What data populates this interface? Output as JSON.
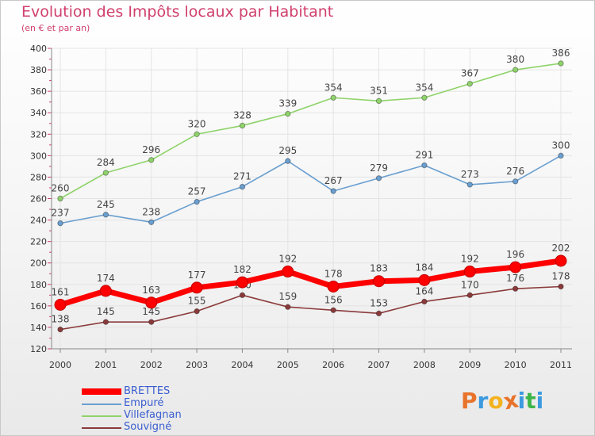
{
  "header": {
    "title": "Evolution des Impôts locaux par Habitant",
    "subtitle": "(en € et par an)"
  },
  "logo": {
    "letters": [
      "P",
      "r",
      "o",
      "x",
      "i",
      "t",
      "i"
    ],
    "colors": [
      "#e8732a",
      "#3b9ae0",
      "#f3b21f",
      "#e8732a",
      "#3b9ae0",
      "#3db54a",
      "#3b9ae0"
    ]
  },
  "chart_data": {
    "type": "line",
    "title": "Evolution des Impôts locaux par Habitant",
    "subtitle": "(en € et par an)",
    "x": [
      "2000",
      "2001",
      "2002",
      "2003",
      "2004",
      "2005",
      "2006",
      "2007",
      "2008",
      "2009",
      "2010",
      "2011"
    ],
    "yticks": [
      "120",
      "140",
      "160",
      "180",
      "200",
      "220",
      "240",
      "260",
      "280",
      "300",
      "320",
      "340",
      "360",
      "380",
      "400"
    ],
    "ylim": [
      120,
      400
    ],
    "grid": true,
    "legend_position": "bottom-left",
    "series": [
      {
        "name": "BRETTES",
        "color": "#ff0000",
        "values": [
          161,
          174,
          163,
          177,
          182,
          192,
          178,
          183,
          184,
          192,
          196,
          202
        ],
        "labels": [
          "161",
          "174",
          "163",
          "177",
          "182",
          "192",
          "178",
          "183",
          "184",
          "192",
          "196",
          "202"
        ]
      },
      {
        "name": "Empuré",
        "color": "#6a9fd0",
        "values": [
          237,
          245,
          238,
          257,
          271,
          295,
          267,
          279,
          291,
          273,
          276,
          300
        ],
        "labels": [
          "237",
          "245",
          "238",
          "257",
          "271",
          "295",
          "267",
          "279",
          "291",
          "273",
          "276",
          "300"
        ]
      },
      {
        "name": "Villefagnan",
        "color": "#8fd36a",
        "values": [
          260,
          284,
          296,
          320,
          328,
          339,
          354,
          351,
          354,
          367,
          380,
          386
        ],
        "labels": [
          "260",
          "284",
          "296",
          "320",
          "328",
          "339",
          "354",
          "351",
          "354",
          "367",
          "380",
          "386"
        ]
      },
      {
        "name": "Souvigné",
        "color": "#8b3a3a",
        "values": [
          138,
          145,
          145,
          155,
          170,
          159,
          156,
          153,
          164,
          170,
          176,
          178
        ],
        "labels": [
          "138",
          "145",
          "145",
          "155",
          "170",
          "159",
          "156",
          "153",
          "164",
          "170",
          "176",
          "178"
        ]
      }
    ]
  }
}
